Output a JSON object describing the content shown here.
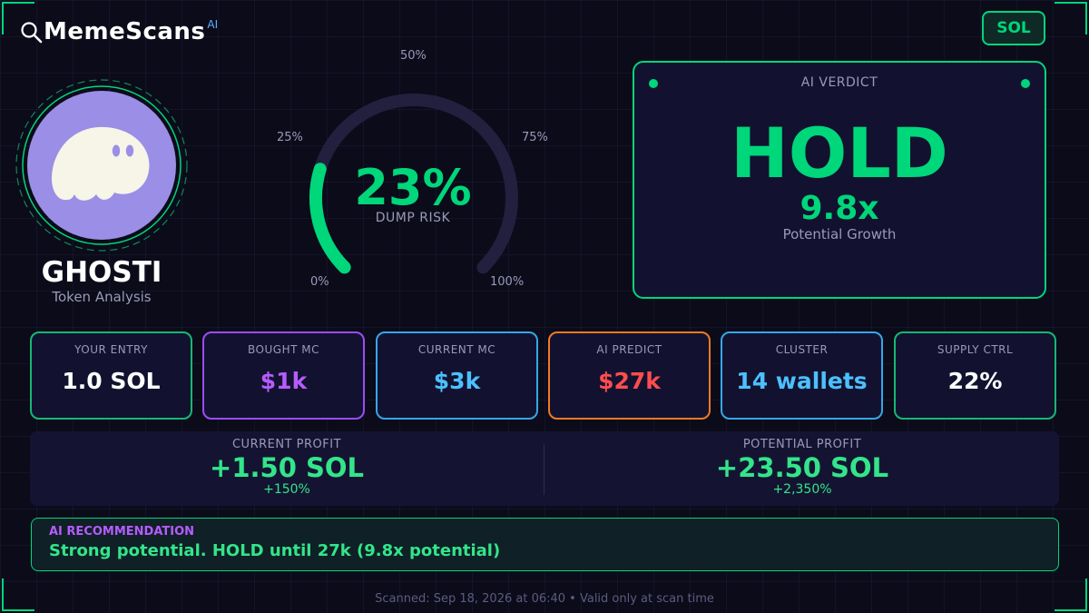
{
  "brand": {
    "name": "MemeScans",
    "badge": "AI",
    "icon": "magnifier-icon"
  },
  "chain_button": "SOL",
  "token": {
    "name": "GHOSTI",
    "subtitle": "Token Analysis",
    "avatar_icon": "ghost-icon",
    "avatar_color": "#9b8ee6"
  },
  "gauge": {
    "value_text": "23%",
    "value_fraction": 0.23,
    "caption": "DUMP RISK",
    "tick_labels": {
      "p0": "0%",
      "p25": "25%",
      "p50": "50%",
      "p75": "75%",
      "p100": "100%"
    },
    "colors": {
      "fill": "#00d67a",
      "track": "#22203e"
    }
  },
  "verdict": {
    "title": "AI VERDICT",
    "word": "HOLD",
    "multiplier": "9.8x",
    "subtitle": "Potential Growth"
  },
  "stats": [
    {
      "label": "YOUR ENTRY",
      "value": "1.0 SOL",
      "border": "#16b873",
      "color": "#ffffff"
    },
    {
      "label": "BOUGHT MC",
      "value": "$1k",
      "border": "#9d4bff",
      "color": "#b65cff"
    },
    {
      "label": "CURRENT MC",
      "value": "$3k",
      "border": "#35a7e8",
      "color": "#4cc0ff"
    },
    {
      "label": "AI PREDICT",
      "value": "$27k",
      "border": "#f07a23",
      "color": "#ff4d4d"
    },
    {
      "label": "CLUSTER",
      "value": "14 wallets",
      "border": "#35a7e8",
      "color": "#4cc0ff"
    },
    {
      "label": "SUPPLY CTRL",
      "value": "22%",
      "border": "#16b873",
      "color": "#ffffff"
    }
  ],
  "profit": {
    "current": {
      "label": "CURRENT PROFIT",
      "value": "+1.50 SOL",
      "percent": "+150%"
    },
    "potential": {
      "label": "POTENTIAL PROFIT",
      "value": "+23.50 SOL",
      "percent": "+2,350%"
    }
  },
  "recommendation": {
    "title": "AI RECOMMENDATION",
    "text": "Strong potential. HOLD until 27k (9.8x potential)"
  },
  "footer": "Scanned: Sep 18, 2026 at 06:40  •  Valid only at scan time"
}
